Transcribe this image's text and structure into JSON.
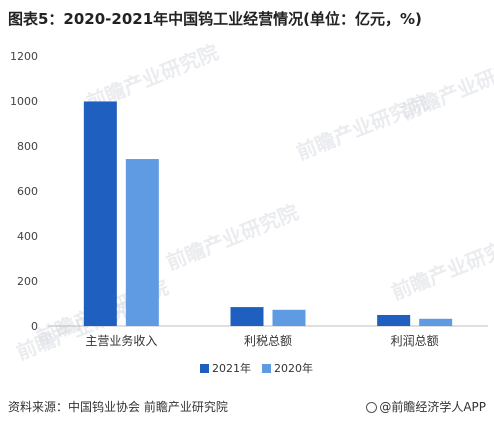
{
  "title": "图表5：2020-2021年中国钨工业经营情况(单位：亿元，%)",
  "watermark": "前瞻产业研究院",
  "footer": {
    "source": "资料来源：中国钨业协会 前瞻产业研究院",
    "brand": "@前瞻经济学人APP",
    "brand_icon": "brand-circle-icon"
  },
  "colors": {
    "series_2021": "#1f5fbf",
    "series_2020": "#5e9be3",
    "axis": "#bfbfbf"
  },
  "chart_data": {
    "type": "bar",
    "title": "图表5：2020-2021年中国钨工业经营情况(单位：亿元，%)",
    "categories": [
      "主营业务收入",
      "利税总额",
      "利润总额"
    ],
    "series": [
      {
        "name": "2021年",
        "values": [
          998,
          84,
          49
        ]
      },
      {
        "name": "2020年",
        "values": [
          742,
          72,
          32
        ]
      }
    ],
    "ylim": [
      0,
      1200
    ],
    "yticks": [
      0,
      200,
      400,
      600,
      800,
      1000,
      1200
    ],
    "xlabel": "",
    "ylabel": "",
    "grid": false,
    "legend": "bottom-center"
  }
}
